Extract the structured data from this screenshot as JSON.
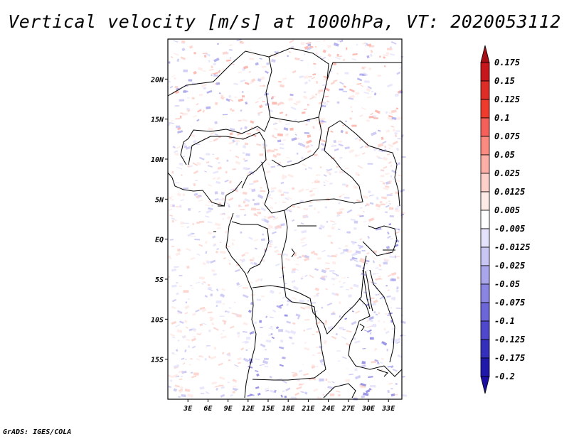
{
  "title": "Vertical velocity [m/s] at 1000hPa, VT: 2020053112",
  "footer": "GrADS: IGES/COLA",
  "map": {
    "lon_range": [
      0,
      35
    ],
    "lat_range": [
      -20,
      25
    ],
    "y_ticks": [
      "20N",
      "15N",
      "10N",
      "5N",
      "EQ",
      "5S",
      "10S",
      "15S"
    ],
    "x_ticks": [
      "3E",
      "6E",
      "9E",
      "12E",
      "15E",
      "18E",
      "21E",
      "24E",
      "27E",
      "30E",
      "33E"
    ]
  },
  "colorbar": {
    "labels": [
      "0.175",
      "0.15",
      "0.125",
      "0.1",
      "0.075",
      "0.05",
      "0.025",
      "0.0125",
      "0.005",
      "-0.005",
      "-0.0125",
      "-0.025",
      "-0.05",
      "-0.075",
      "-0.1",
      "-0.125",
      "-0.175",
      "-0.2"
    ],
    "colors": [
      "#a50f15",
      "#c8161d",
      "#de2d26",
      "#ef3b2c",
      "#f6605a",
      "#fb8a80",
      "#fcafa6",
      "#fdd0ca",
      "#feeae6",
      "#ffffff",
      "#e4e3fb",
      "#c9c6f4",
      "#aaa6ec",
      "#8a84e2",
      "#6c66d8",
      "#4f48cc",
      "#3530bb",
      "#2018a8",
      "#1a0fa0"
    ]
  }
}
